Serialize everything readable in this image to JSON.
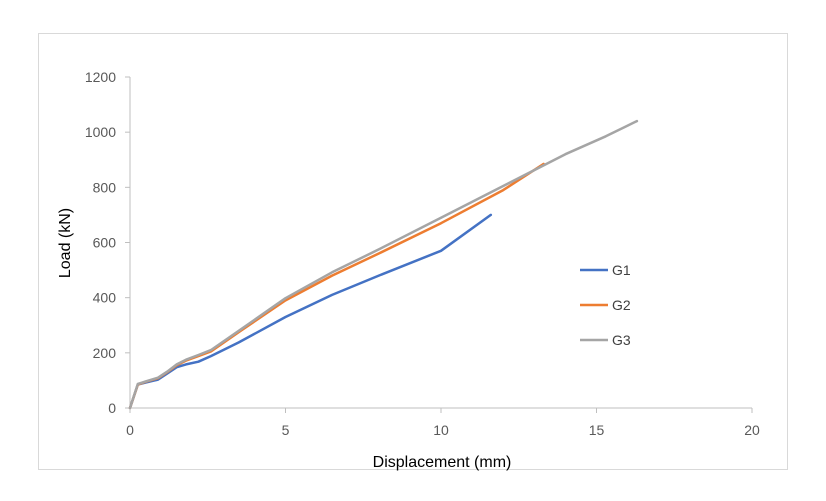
{
  "chart_data": {
    "type": "line",
    "title": "",
    "xlabel": "Displacement (mm)",
    "ylabel": "Load (kN)",
    "xlim": [
      0,
      20
    ],
    "ylim": [
      0,
      1200
    ],
    "xticks": [
      "0",
      "5",
      "10",
      "15",
      "20"
    ],
    "yticks": [
      "0",
      "200",
      "400",
      "600",
      "800",
      "1000",
      "1200"
    ],
    "grid": false,
    "legend_position": "right",
    "series": [
      {
        "name": "G1",
        "color": "#4472C4",
        "points": [
          [
            0,
            0
          ],
          [
            0.25,
            85
          ],
          [
            0.5,
            92
          ],
          [
            0.9,
            103
          ],
          [
            1.2,
            125
          ],
          [
            1.5,
            148
          ],
          [
            1.8,
            158
          ],
          [
            2.2,
            168
          ],
          [
            2.6,
            188
          ],
          [
            3.5,
            238
          ],
          [
            5,
            330
          ],
          [
            6.5,
            410
          ],
          [
            8,
            480
          ],
          [
            10,
            570
          ],
          [
            11.6,
            700
          ]
        ]
      },
      {
        "name": "G2",
        "color": "#ED7D31",
        "points": [
          [
            0,
            0
          ],
          [
            0.25,
            85
          ],
          [
            0.5,
            95
          ],
          [
            0.9,
            108
          ],
          [
            1.2,
            130
          ],
          [
            1.5,
            155
          ],
          [
            1.8,
            172
          ],
          [
            2.2,
            188
          ],
          [
            2.6,
            205
          ],
          [
            3.5,
            275
          ],
          [
            5,
            390
          ],
          [
            6.5,
            480
          ],
          [
            8,
            560
          ],
          [
            10,
            670
          ],
          [
            12,
            790
          ],
          [
            13.3,
            885
          ]
        ]
      },
      {
        "name": "G3",
        "color": "#A5A5A5",
        "points": [
          [
            0,
            0
          ],
          [
            0.25,
            87
          ],
          [
            0.5,
            96
          ],
          [
            0.9,
            110
          ],
          [
            1.2,
            132
          ],
          [
            1.5,
            158
          ],
          [
            1.8,
            175
          ],
          [
            2.2,
            192
          ],
          [
            2.6,
            210
          ],
          [
            3.5,
            280
          ],
          [
            5,
            398
          ],
          [
            6.5,
            492
          ],
          [
            8,
            575
          ],
          [
            10,
            690
          ],
          [
            12,
            805
          ],
          [
            14,
            920
          ],
          [
            15.3,
            985
          ],
          [
            16.3,
            1040
          ]
        ]
      }
    ]
  }
}
